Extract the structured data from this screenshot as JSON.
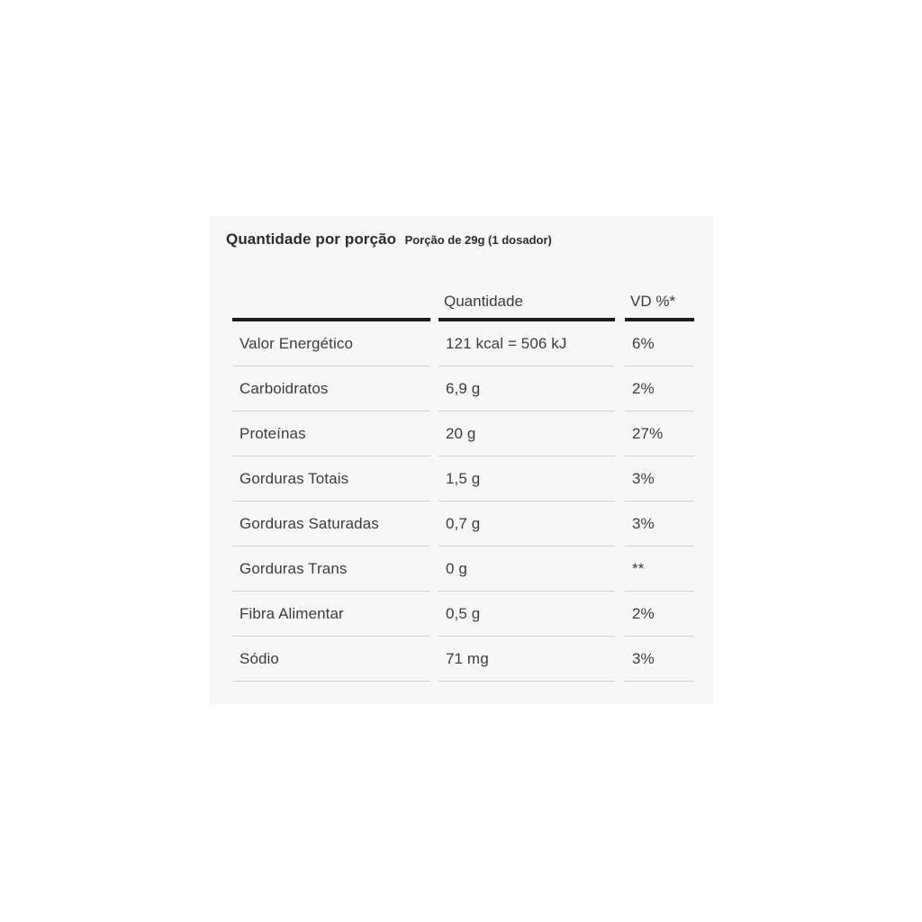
{
  "card": {
    "title": "Quantidade por porção",
    "subtitle": "Porção de 29g (1 dosador)"
  },
  "table": {
    "columns": {
      "label": "",
      "quantity": "Quantidade",
      "dv": "VD %*"
    },
    "rows": [
      {
        "label": "Valor Energético",
        "quantity": "121 kcal = 506 kJ",
        "dv": "6%"
      },
      {
        "label": "Carboidratos",
        "quantity": "6,9 g",
        "dv": "2%"
      },
      {
        "label": "Proteínas",
        "quantity": "20 g",
        "dv": "27%"
      },
      {
        "label": "Gorduras Totais",
        "quantity": "1,5 g",
        "dv": "3%"
      },
      {
        "label": "Gorduras Saturadas",
        "quantity": "0,7 g",
        "dv": "3%"
      },
      {
        "label": "Gorduras Trans",
        "quantity": "0 g",
        "dv": "**"
      },
      {
        "label": "Fibra Alimentar",
        "quantity": "0,5 g",
        "dv": "2%"
      },
      {
        "label": "Sódio",
        "quantity": "71 mg",
        "dv": "3%"
      }
    ]
  },
  "colors": {
    "card_background": "#f7f7f7",
    "page_background": "#ffffff",
    "header_rule": "#1b1b1b",
    "row_separator": "#d2d2d2",
    "text": "#3c3c3c"
  }
}
